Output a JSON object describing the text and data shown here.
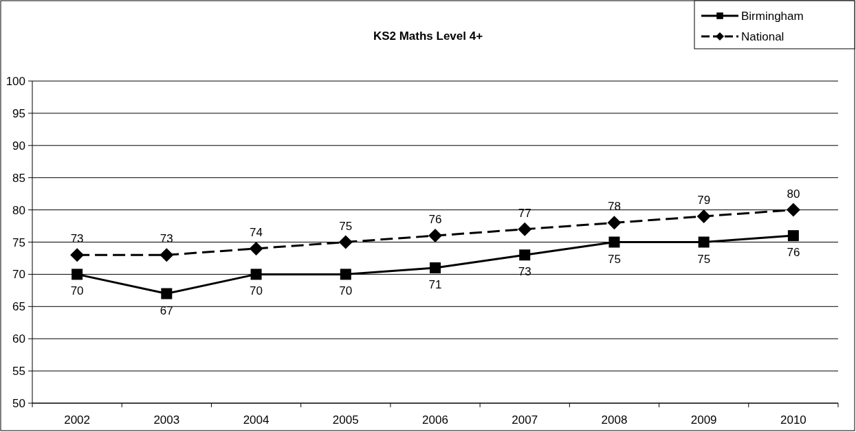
{
  "chart_data": {
    "type": "line",
    "title": "KS2 Maths Level 4+",
    "categories": [
      "2002",
      "2003",
      "2004",
      "2005",
      "2006",
      "2007",
      "2008",
      "2009",
      "2010"
    ],
    "series": [
      {
        "name": "Birmingham",
        "color": "#000000",
        "values": [
          70,
          67,
          70,
          70,
          71,
          73,
          75,
          75,
          76
        ],
        "marker": "square",
        "line_style": "solid"
      },
      {
        "name": "National",
        "color": "#000000",
        "values": [
          73,
          73,
          74,
          75,
          76,
          77,
          78,
          79,
          80
        ],
        "marker": "diamond",
        "line_style": "dashed"
      }
    ],
    "ylim": [
      50,
      100
    ],
    "yticks": [
      50,
      55,
      60,
      65,
      70,
      75,
      80,
      85,
      90,
      95,
      100
    ],
    "grid": "y",
    "legend": "top right",
    "data_labels": true
  }
}
